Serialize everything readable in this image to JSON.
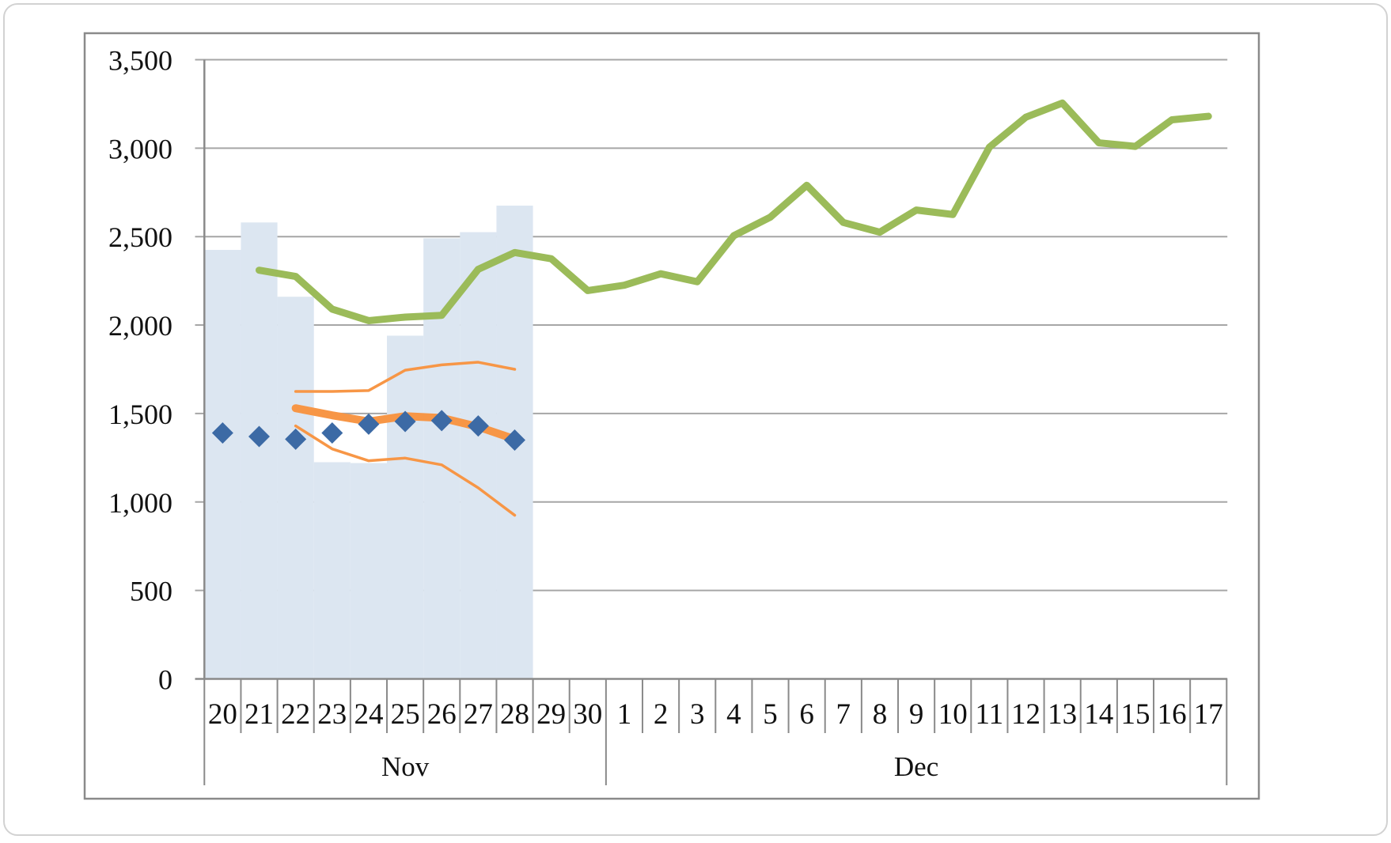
{
  "card": {
    "background": "#FFFFFF",
    "border_color": "#D2D2D2"
  },
  "frame": {
    "border_color": "#8A8A8A",
    "background": "#FFFFFF"
  },
  "chart_data": {
    "type": "combo",
    "title": "",
    "grid_on": true,
    "legend": "none",
    "colors": {
      "bars": "#DCE6F1",
      "green_line": "#9BBB59",
      "orange": "#F79646",
      "diamond": "#3C6AA5",
      "gridline": "#A6A6A6",
      "axis": "#8A8A8A",
      "text": "#111111"
    },
    "y_axis": {
      "min": 0,
      "max": 3500,
      "tick_interval": 500,
      "tick_labels": [
        "0",
        "500",
        "1,000",
        "1,500",
        "2,000",
        "2,500",
        "3,000",
        "3,500"
      ]
    },
    "x_axis": {
      "categories": [
        "20",
        "21",
        "22",
        "23",
        "24",
        "25",
        "26",
        "27",
        "28",
        "29",
        "30",
        "1",
        "2",
        "3",
        "4",
        "5",
        "6",
        "7",
        "8",
        "9",
        "10",
        "11",
        "12",
        "13",
        "14",
        "15",
        "16",
        "17"
      ],
      "month_groups": [
        {
          "label": "Nov",
          "start": 0,
          "count": 11
        },
        {
          "label": "Dec",
          "start": 11,
          "count": 17
        }
      ]
    },
    "series": [
      {
        "id": "bars-light-blue",
        "type": "bar",
        "color": "#DCE6F1",
        "values": [
          2425,
          2580,
          2160,
          1225,
          1220,
          1940,
          2490,
          2525,
          2675,
          null,
          null,
          null,
          null,
          null,
          null,
          null,
          null,
          null,
          null,
          null,
          null,
          null,
          null,
          null,
          null,
          null,
          null,
          null
        ]
      },
      {
        "id": "line-green-actual",
        "type": "line",
        "color": "#9BBB59",
        "values": [
          null,
          2310,
          2275,
          2090,
          2025,
          2045,
          2055,
          2315,
          2410,
          2375,
          2195,
          2225,
          2290,
          2245,
          2505,
          2610,
          2790,
          2580,
          2525,
          2650,
          2625,
          3005,
          3175,
          3255,
          3030,
          3010,
          3160,
          3180
        ]
      },
      {
        "id": "line-orange-upper-thin",
        "type": "line",
        "color": "#F79646",
        "values": [
          null,
          null,
          1625,
          1625,
          1630,
          1745,
          1775,
          1790,
          1750,
          null,
          null,
          null,
          null,
          null,
          null,
          null,
          null,
          null,
          null,
          null,
          null,
          null,
          null,
          null,
          null,
          null,
          null,
          null
        ]
      },
      {
        "id": "line-orange-lower-thin",
        "type": "line",
        "color": "#F79646",
        "values": [
          null,
          null,
          1430,
          1300,
          1233,
          1248,
          1210,
          1080,
          925,
          null,
          null,
          null,
          null,
          null,
          null,
          null,
          null,
          null,
          null,
          null,
          null,
          null,
          null,
          null,
          null,
          null,
          null,
          null
        ]
      },
      {
        "id": "line-orange-thick",
        "type": "line",
        "color": "#F79646",
        "values": [
          null,
          null,
          1530,
          1490,
          1455,
          1485,
          1475,
          1425,
          1355,
          null,
          null,
          null,
          null,
          null,
          null,
          null,
          null,
          null,
          null,
          null,
          null,
          null,
          null,
          null,
          null,
          null,
          null,
          null
        ]
      },
      {
        "id": "markers-blue-diamonds",
        "type": "scatter-diamond",
        "color": "#3C6AA5",
        "values": [
          1390,
          1370,
          1355,
          1390,
          1440,
          1455,
          1460,
          1430,
          1350,
          null,
          null,
          null,
          null,
          null,
          null,
          null,
          null,
          null,
          null,
          null,
          null,
          null,
          null,
          null,
          null,
          null,
          null,
          null
        ]
      }
    ]
  }
}
